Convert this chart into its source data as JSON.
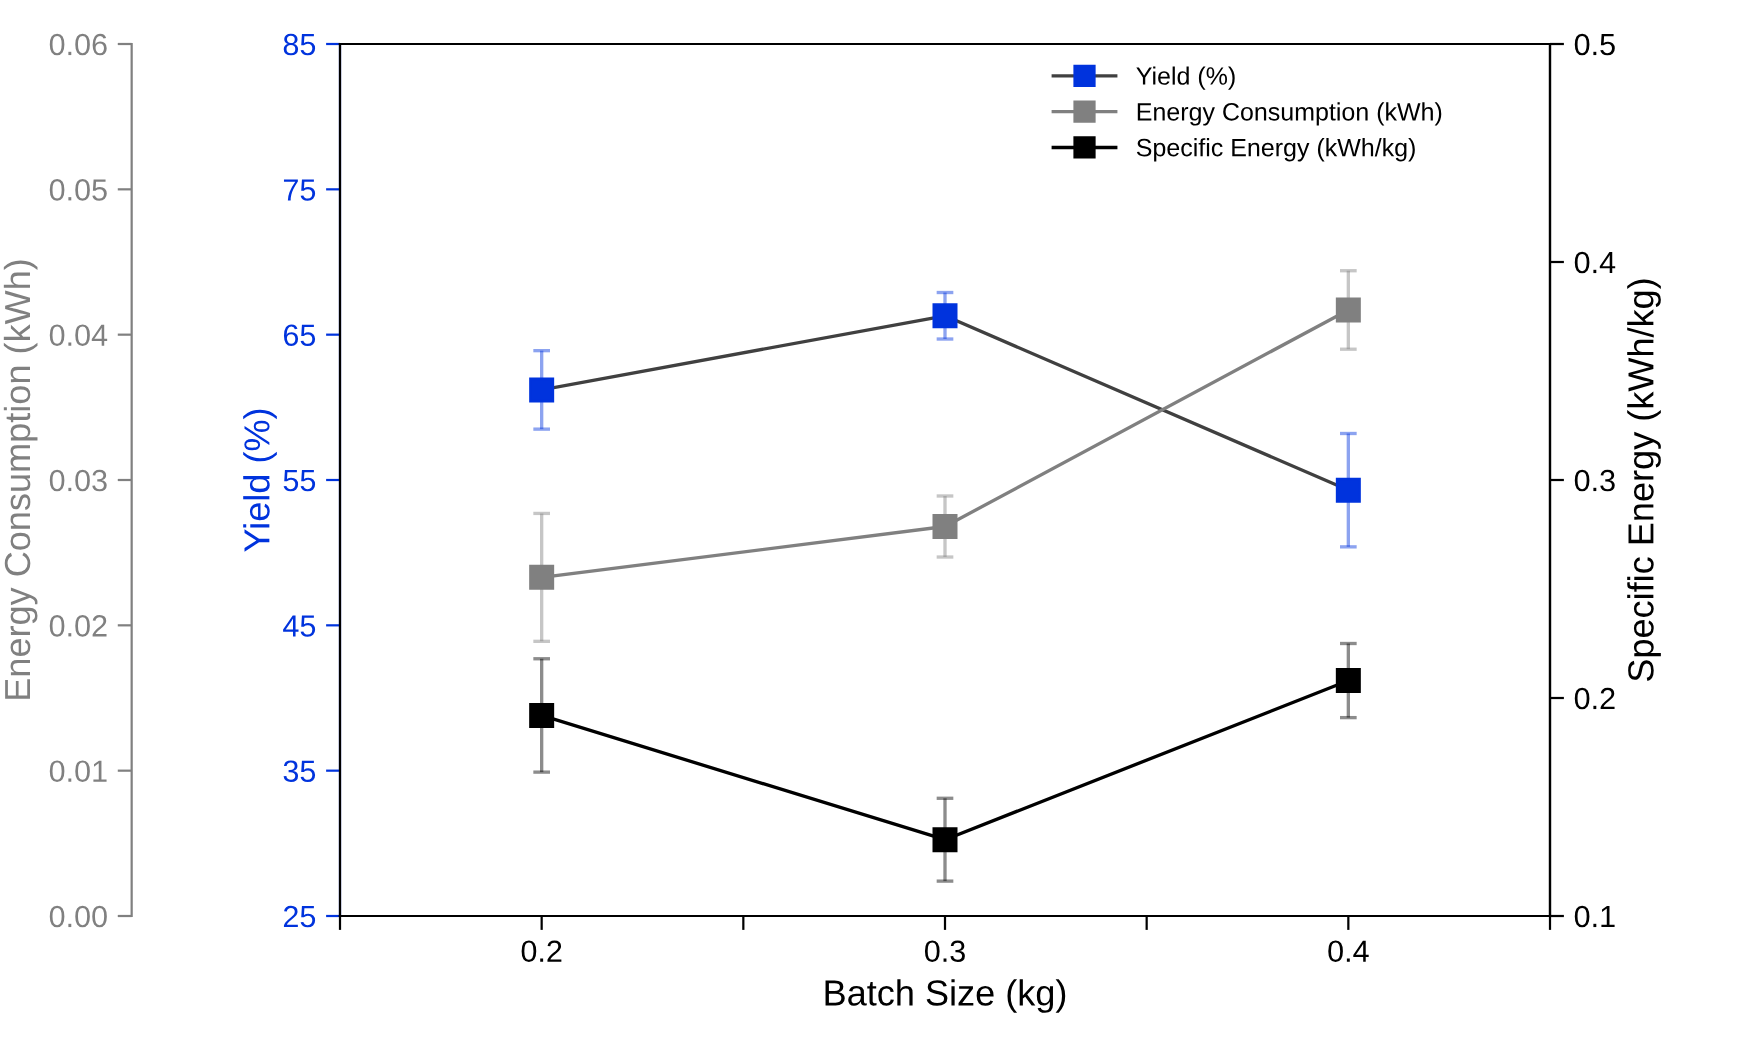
{
  "chart_data": {
    "type": "line",
    "xlabel": "Batch Size (kg)",
    "ylabel": "Yield (%)",
    "y2label": "Specific Energy (kWh/kg)",
    "y3label": "Energy Consumption (kWh)",
    "x": [
      0.2,
      0.3,
      0.4
    ],
    "xlim": [
      0.15,
      0.45
    ],
    "xticks": [
      {
        "value": 0.15,
        "label": null
      },
      0.2,
      {
        "value": 0.25,
        "label": null
      },
      0.3,
      {
        "value": 0.35,
        "label": null
      },
      0.4,
      {
        "value": 0.45,
        "label": null
      }
    ],
    "ylim": [
      25,
      85
    ],
    "yticks": [
      25,
      35,
      45,
      55,
      65,
      75,
      85
    ],
    "y2lim": [
      0.1,
      0.5
    ],
    "y2ticks": [
      0.1,
      0.2,
      0.3,
      0.4,
      0.5
    ],
    "y3lim": [
      0.0,
      0.06
    ],
    "y3ticks": [
      {
        "value": 0,
        "label": "0.00"
      },
      0.01,
      0.02,
      0.03,
      0.04,
      0.05,
      0.06
    ],
    "marker": "square",
    "line_style": "solid",
    "legend": "top right",
    "grid": false,
    "series": [
      {
        "name": "Yield (%)",
        "color": "#0033dd",
        "values": [
          61.2,
          66.3,
          54.3
        ],
        "errors": [
          2.7,
          1.6,
          3.9
        ]
      },
      {
        "name": "Energy Consumption (kWh)",
        "color": "#808080",
        "axis": "y3",
        "values": [
          0.0233,
          0.0268,
          0.0417
        ],
        "errors": [
          0.0044,
          0.0021,
          0.0027
        ]
      },
      {
        "name": "Specific Energy (kWh/kg)",
        "color": "#000000",
        "axis": "y2",
        "values": [
          0.192,
          0.135,
          0.208
        ],
        "errors": [
          0.026,
          0.019,
          0.017
        ]
      }
    ]
  }
}
